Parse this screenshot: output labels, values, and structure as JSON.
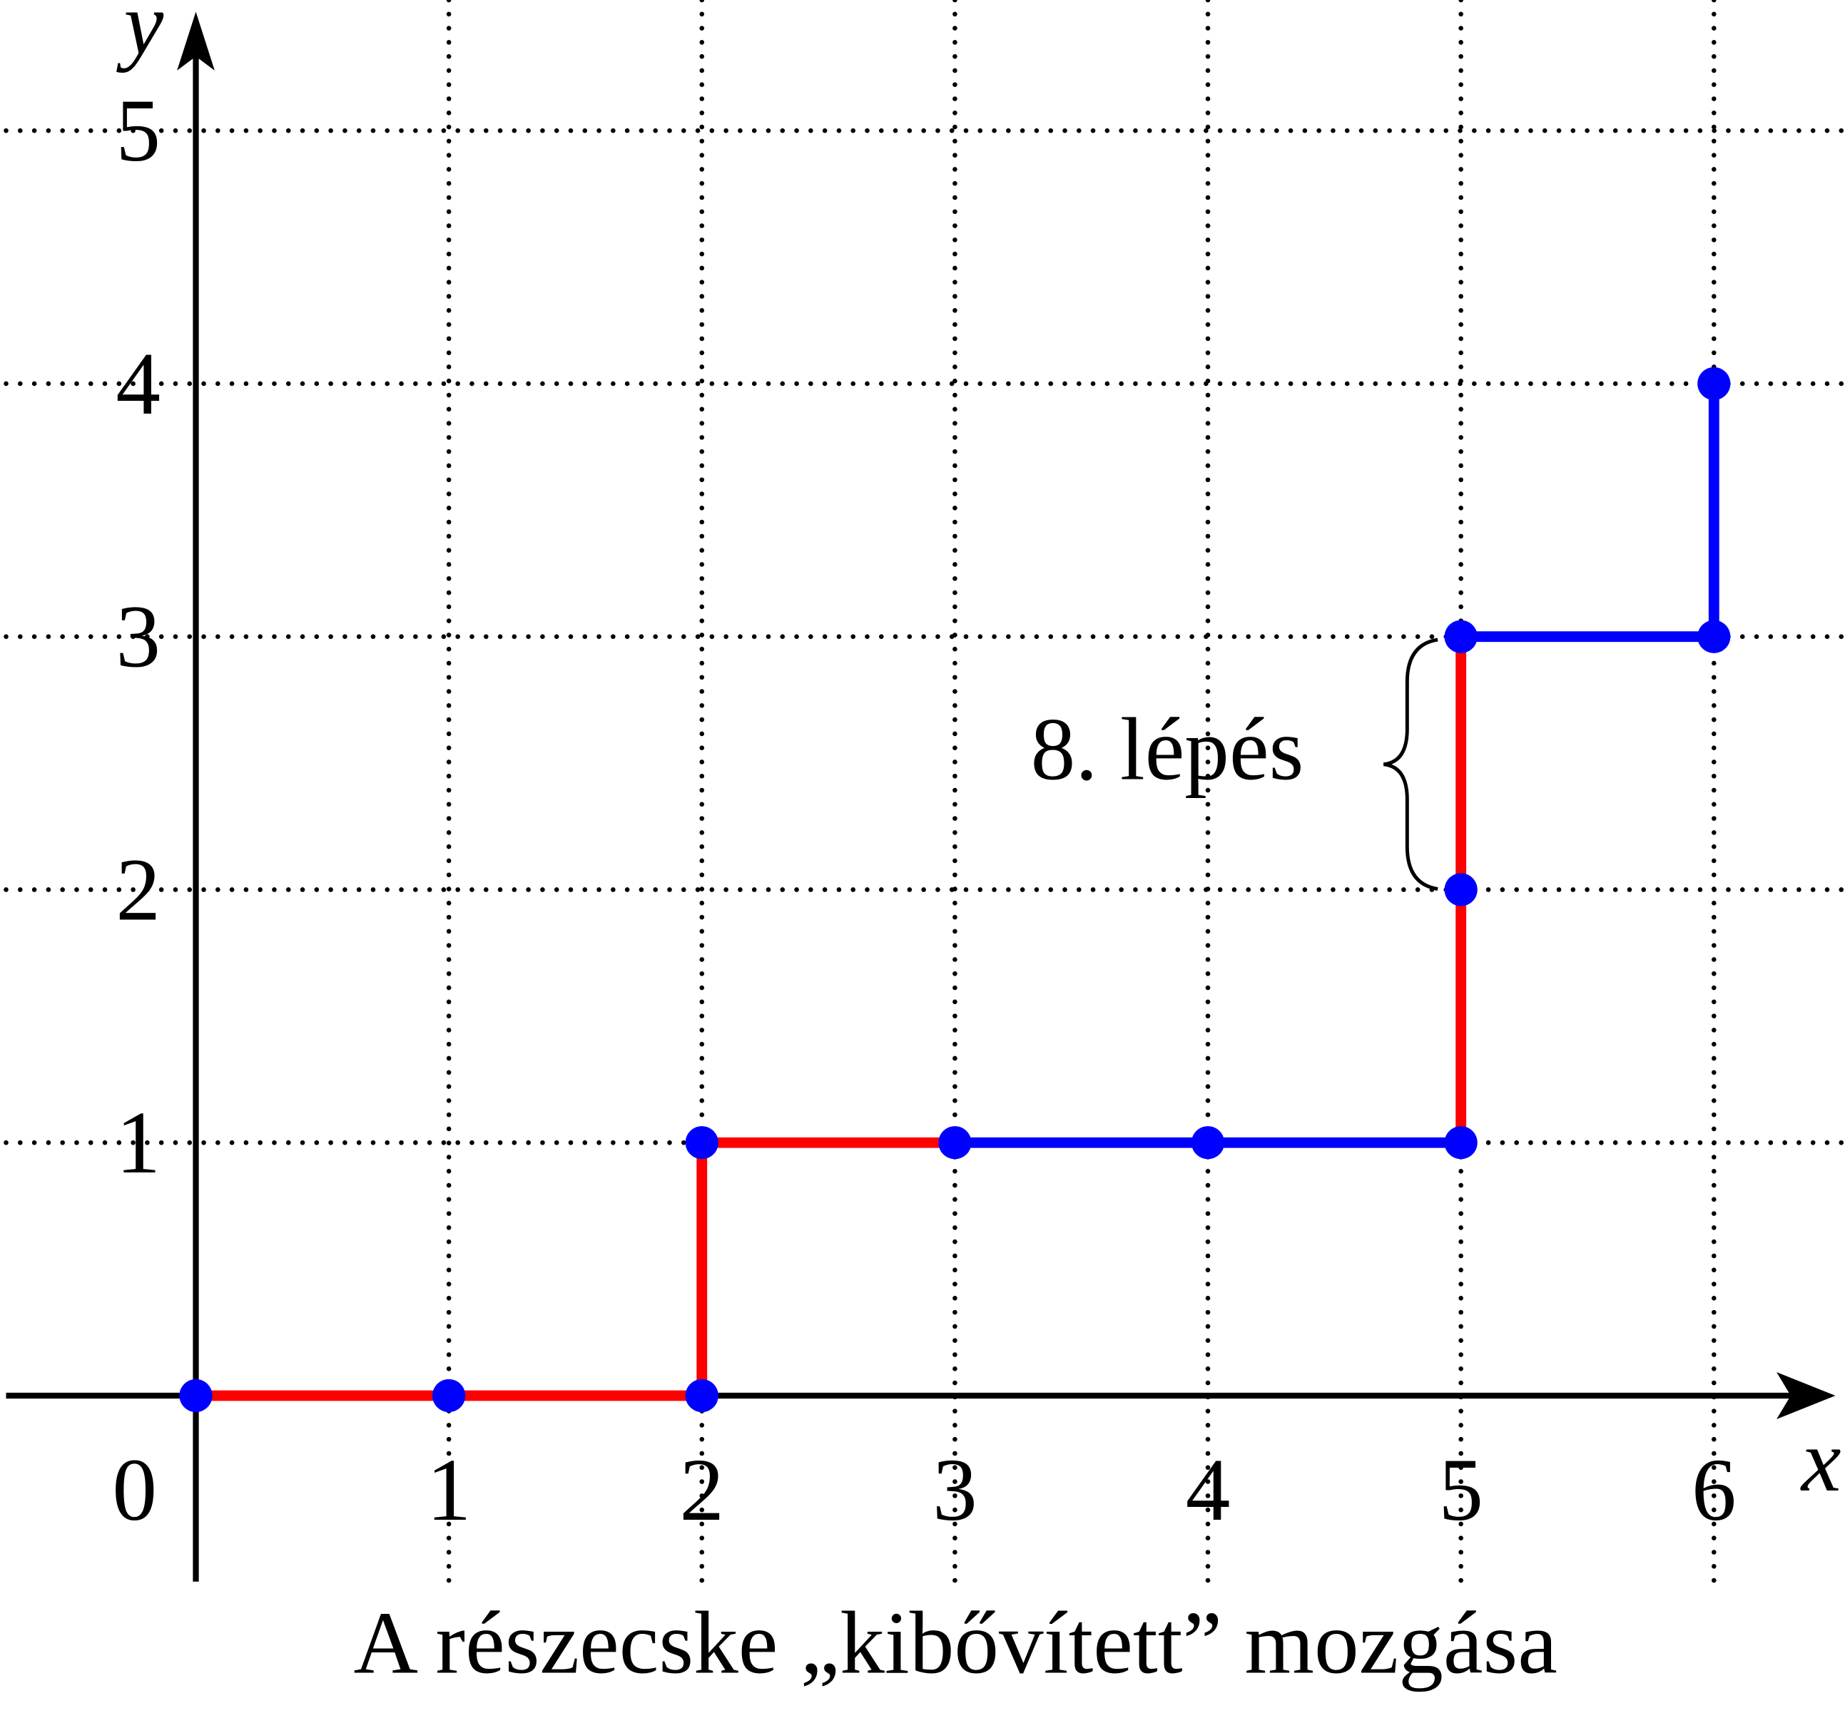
{
  "chart_data": {
    "type": "line",
    "title": "A részecske „kibővített” mozgása",
    "xlabel": "x",
    "ylabel": "y",
    "annotation": "8. lépés",
    "xlim": [
      -0.75,
      6.48
    ],
    "ylim": [
      -0.735,
      5.47
    ],
    "xticks": [
      0,
      1,
      2,
      3,
      4,
      5,
      6
    ],
    "yticks": [
      1,
      2,
      3,
      4,
      5
    ],
    "grid": true,
    "series": [
      {
        "color": "#ff0000",
        "x": [
          0,
          2,
          2,
          3
        ],
        "values": [
          0,
          0,
          1,
          1
        ]
      },
      {
        "color": "#0000ff",
        "x": [
          3,
          5
        ],
        "values": [
          1,
          1
        ]
      },
      {
        "color": "#ff0000",
        "x": [
          5,
          5
        ],
        "values": [
          1,
          3
        ]
      },
      {
        "color": "#0000ff",
        "x": [
          5,
          6,
          6
        ],
        "values": [
          3,
          3,
          4
        ]
      }
    ],
    "points": {
      "color": "#0000ff",
      "x": [
        0,
        1,
        2,
        2,
        3,
        4,
        5,
        5,
        5,
        6,
        6
      ],
      "values": [
        0,
        0,
        0,
        1,
        1,
        1,
        1,
        2,
        3,
        3,
        4
      ]
    }
  }
}
